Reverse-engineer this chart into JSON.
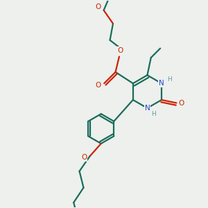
{
  "bg_color": "#edf0ed",
  "bond_color": "#1a6b5a",
  "oxygen_color": "#cc2200",
  "nitrogen_color": "#2244cc",
  "hydrogen_color": "#6699aa",
  "line_width": 1.6,
  "figsize": [
    3.0,
    3.0
  ],
  "dpi": 100,
  "xlim": [
    0,
    10
  ],
  "ylim": [
    0,
    10
  ]
}
